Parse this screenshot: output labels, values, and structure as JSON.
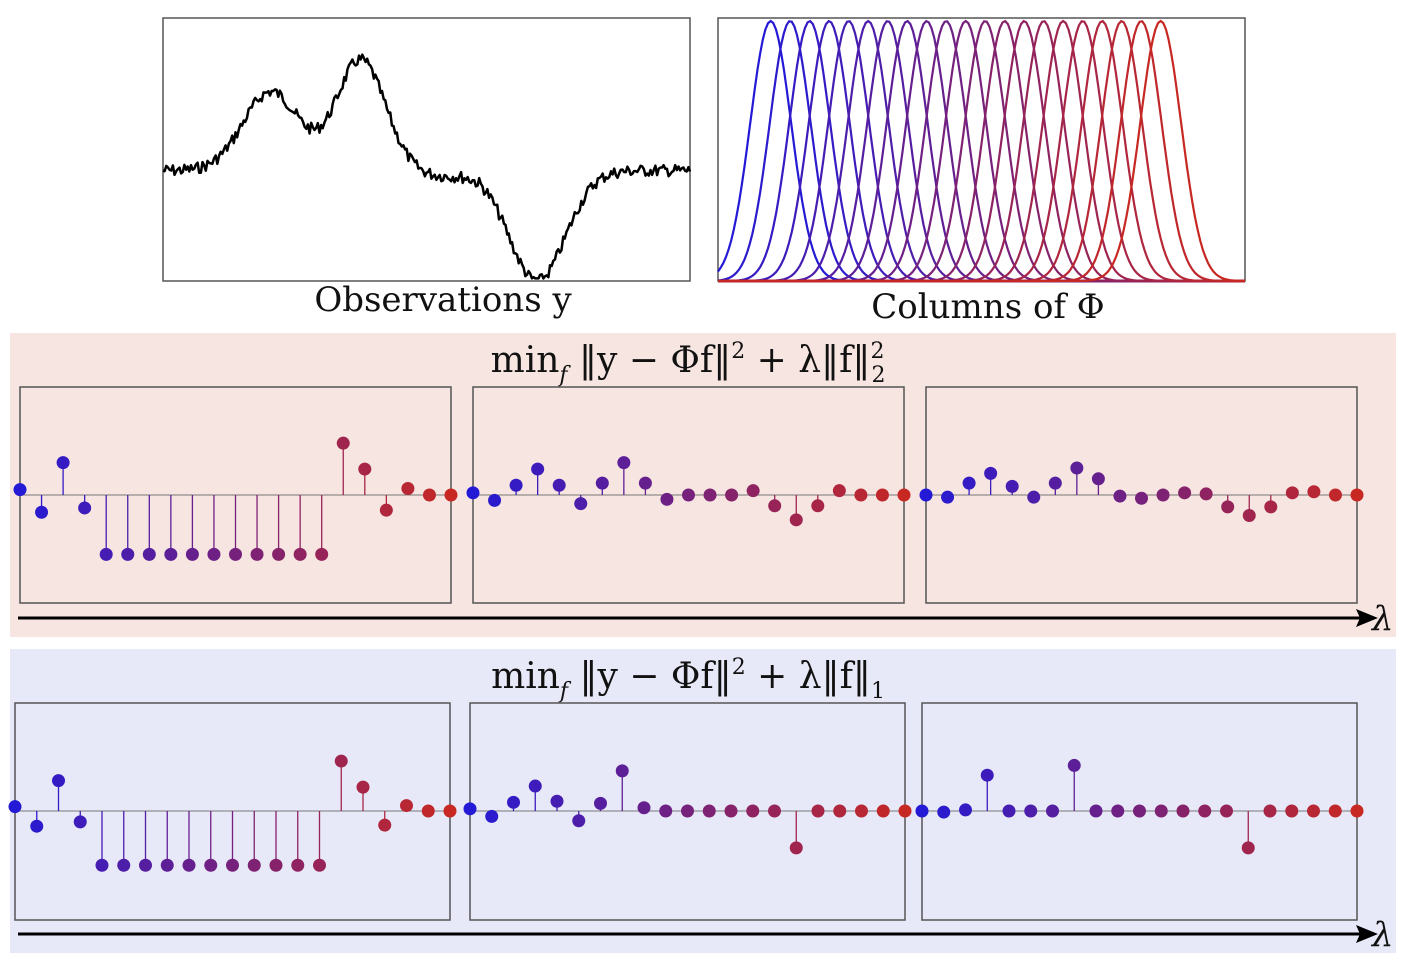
{
  "top": {
    "observations_caption": "Observations y",
    "columns_caption": "Columns of Φ",
    "n_columns": 21
  },
  "bands": [
    {
      "id": "l2",
      "background": "#f7e5e1",
      "formula": {
        "min": "min",
        "sub": "f",
        "body": " ‖y − Φf‖",
        "sup2": "2",
        "rest": " + λ‖f‖",
        "tail_sup": "2",
        "tail_sub": "2"
      },
      "axis_label": "λ",
      "panels": [
        [
          0.05,
          -0.16,
          0.3,
          -0.12,
          -0.55,
          -0.55,
          -0.55,
          -0.55,
          -0.55,
          -0.55,
          -0.55,
          -0.55,
          -0.55,
          -0.55,
          -0.55,
          0.48,
          0.24,
          -0.14,
          0.06,
          0.0,
          0.0
        ],
        [
          0.02,
          -0.05,
          0.09,
          0.24,
          0.09,
          -0.08,
          0.11,
          0.3,
          0.11,
          -0.04,
          0.0,
          0.0,
          0.0,
          0.04,
          -0.1,
          -0.23,
          -0.1,
          0.04,
          0.0,
          0.0,
          0.0
        ],
        [
          0.0,
          -0.02,
          0.11,
          0.2,
          0.08,
          -0.02,
          0.11,
          0.25,
          0.15,
          -0.01,
          -0.03,
          0.0,
          0.02,
          0.01,
          -0.11,
          -0.19,
          -0.11,
          0.02,
          0.03,
          0.0,
          0.0
        ]
      ]
    },
    {
      "id": "l1",
      "background": "#e8e9f8",
      "formula": {
        "min": "min",
        "sub": "f",
        "body": " ‖y − Φf‖",
        "sup2": "2",
        "rest": " + λ‖f‖",
        "tail_sup": "",
        "tail_sub": "1"
      },
      "axis_label": "λ",
      "panels": [
        [
          0.04,
          -0.14,
          0.28,
          -0.1,
          -0.5,
          -0.5,
          -0.5,
          -0.5,
          -0.5,
          -0.5,
          -0.5,
          -0.5,
          -0.5,
          -0.5,
          -0.5,
          0.46,
          0.22,
          -0.13,
          0.05,
          0.0,
          0.0
        ],
        [
          0.02,
          -0.05,
          0.08,
          0.23,
          0.09,
          -0.09,
          0.07,
          0.37,
          0.03,
          0.0,
          0.0,
          0.0,
          0.0,
          0.0,
          0.0,
          -0.34,
          0.0,
          0.0,
          0.0,
          0.0,
          0.0
        ],
        [
          0.0,
          -0.01,
          0.01,
          0.33,
          0.0,
          0.0,
          0.0,
          0.42,
          0.0,
          0.0,
          0.0,
          0.0,
          0.0,
          0.0,
          0.0,
          -0.34,
          0.0,
          0.0,
          0.0,
          0.0,
          0.0
        ]
      ]
    }
  ]
}
